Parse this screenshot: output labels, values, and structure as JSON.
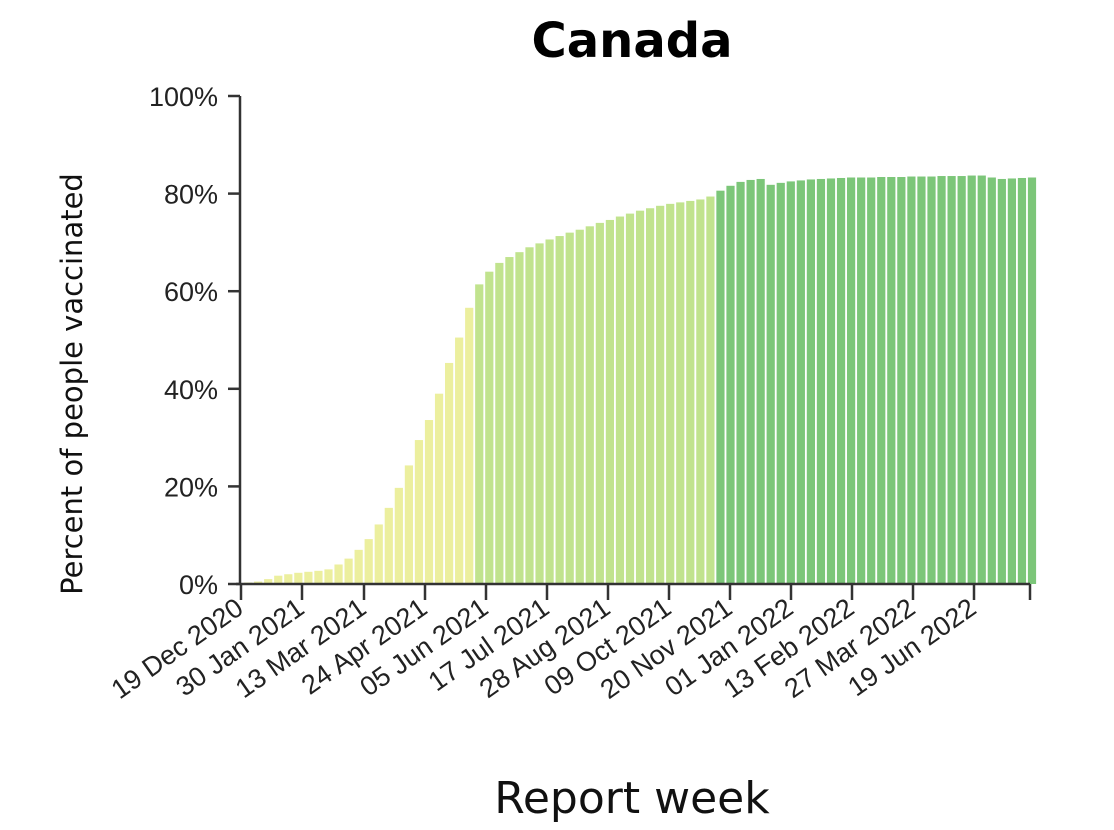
{
  "chart_data": {
    "type": "bar",
    "title": "Canada",
    "xlabel": "Report week",
    "ylabel": "Percent of people vaccinated",
    "ylim": [
      0,
      100
    ],
    "yticks": [
      "0%",
      "20%",
      "40%",
      "60%",
      "80%",
      "100%"
    ],
    "ytick_values": [
      0,
      20,
      40,
      60,
      80,
      100
    ],
    "xtick_labels": [
      "19 Dec 2020",
      "30 Jan 2021",
      "13 Mar 2021",
      "24 Apr 2021",
      "05 Jun 2021",
      "17 Jul 2021",
      "28 Aug 2021",
      "09 Oct 2021",
      "20 Nov 2021",
      "01 Jan 2022",
      "13 Feb 2022",
      "27 Mar 2022",
      "19 Jun 2022"
    ],
    "legend": "none",
    "grid": false,
    "colors": {
      "low": "#ecef9e",
      "mid": "#c1e38e",
      "high": "#7cc679"
    },
    "values": [
      0.3,
      0.5,
      1.0,
      1.7,
      2.0,
      2.3,
      2.5,
      2.7,
      3.0,
      4.0,
      5.2,
      7.0,
      9.2,
      12.2,
      15.6,
      19.7,
      24.3,
      29.5,
      33.6,
      39.0,
      45.3,
      50.5,
      56.6,
      61.4,
      64.0,
      65.8,
      67.0,
      68.0,
      69.0,
      69.8,
      70.6,
      71.3,
      72.0,
      72.6,
      73.3,
      74.0,
      74.6,
      75.3,
      75.9,
      76.5,
      77.0,
      77.5,
      77.9,
      78.2,
      78.5,
      78.8,
      79.4,
      80.6,
      81.6,
      82.4,
      82.8,
      83.0,
      81.8,
      82.2,
      82.5,
      82.7,
      82.9,
      83.0,
      83.1,
      83.2,
      83.3,
      83.3,
      83.3,
      83.4,
      83.4,
      83.4,
      83.5,
      83.5,
      83.5,
      83.6,
      83.6,
      83.6,
      83.7,
      83.7,
      83.3,
      83.0,
      83.1,
      83.2,
      83.3
    ],
    "groups": [
      "low",
      "low",
      "low",
      "low",
      "low",
      "low",
      "low",
      "low",
      "low",
      "low",
      "low",
      "low",
      "low",
      "low",
      "low",
      "low",
      "low",
      "low",
      "low",
      "low",
      "low",
      "low",
      "low",
      "mid",
      "mid",
      "mid",
      "mid",
      "mid",
      "mid",
      "mid",
      "mid",
      "mid",
      "mid",
      "mid",
      "mid",
      "mid",
      "mid",
      "mid",
      "mid",
      "mid",
      "mid",
      "mid",
      "mid",
      "mid",
      "mid",
      "mid",
      "mid",
      "high",
      "high",
      "high",
      "high",
      "high",
      "high",
      "high",
      "high",
      "high",
      "high",
      "high",
      "high",
      "high",
      "high",
      "high",
      "high",
      "high",
      "high",
      "high",
      "high",
      "high",
      "high",
      "high",
      "high",
      "high",
      "high",
      "high",
      "high",
      "high",
      "high",
      "high",
      "high"
    ]
  }
}
